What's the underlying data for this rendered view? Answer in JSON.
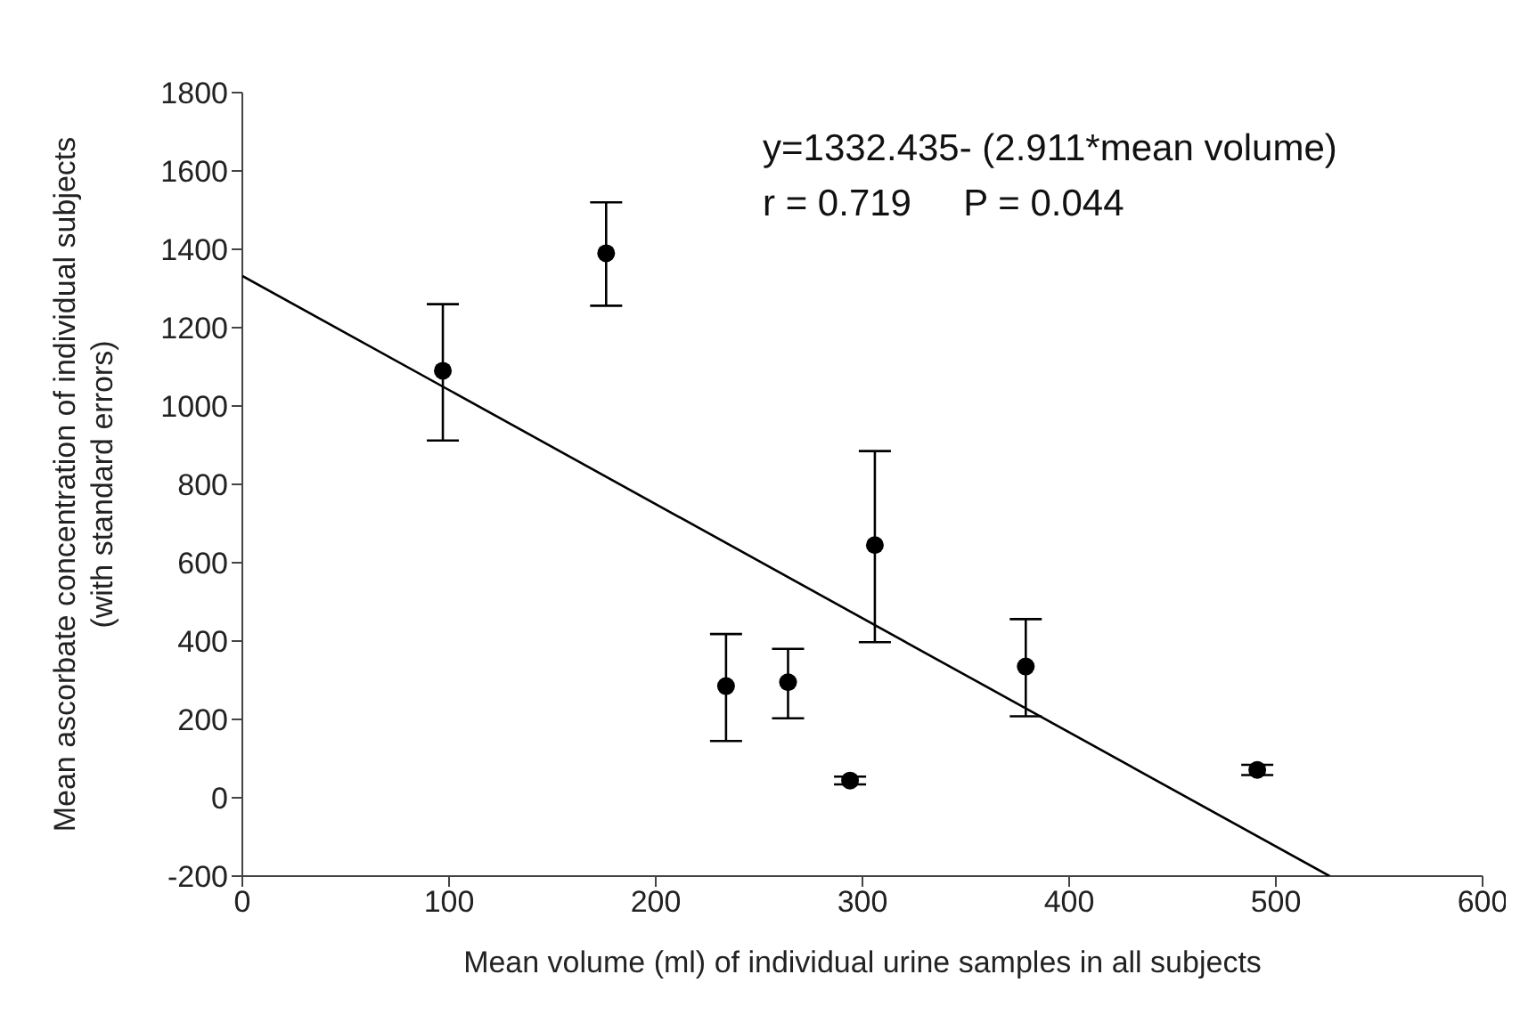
{
  "chart_data": {
    "type": "scatter",
    "xlabel": "Mean volume (ml) of individual urine samples in all subjects",
    "ylabel": "Mean ascorbate concentration of individual subjects\n(with standard errors)",
    "annotations": [
      "y=1332.435- (2.911*mean volume)",
      "r = 0.719     P = 0.044"
    ],
    "xlim": [
      0,
      600
    ],
    "xticks": [
      0,
      100,
      200,
      300,
      400,
      500,
      600
    ],
    "ylim": [
      -200,
      1800
    ],
    "yticks": [
      -200,
      0,
      200,
      400,
      600,
      800,
      1000,
      1200,
      1400,
      1600,
      1800
    ],
    "grid": false,
    "legend": false,
    "series": [
      {
        "color": "#000000",
        "marker": "circle",
        "x": [
          97,
          176,
          234,
          264,
          294,
          306,
          379,
          491
        ],
        "values": [
          1090,
          1390,
          285,
          295,
          44,
          645,
          335,
          71
        ],
        "errors": [
          [
            912,
            1260
          ],
          [
            1256,
            1520
          ],
          [
            145,
            418
          ],
          [
            203,
            380
          ],
          [
            34,
            54
          ],
          [
            397,
            885
          ],
          [
            208,
            456
          ],
          [
            58,
            84
          ]
        ]
      },
      {
        "type": "line",
        "color": "#000000",
        "marker": "none",
        "x": [
          0,
          526
        ],
        "values": [
          1332,
          -200
        ]
      }
    ]
  }
}
